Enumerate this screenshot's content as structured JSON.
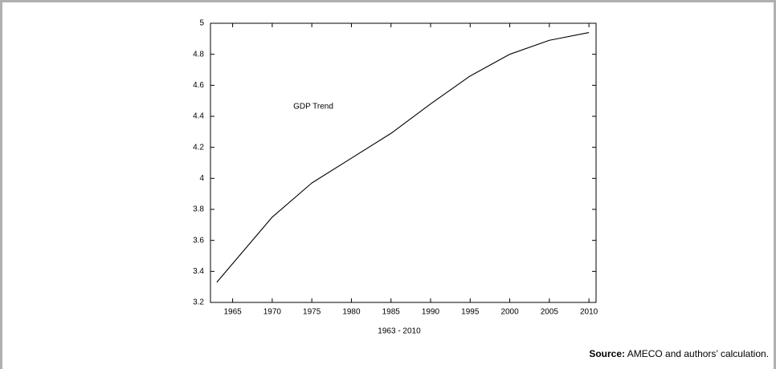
{
  "chart_data": {
    "type": "line",
    "annotation": "GDP Trend",
    "xlabel": "1963 - 2010",
    "x": [
      1963,
      1965,
      1970,
      1975,
      1980,
      1985,
      1990,
      1995,
      2000,
      2005,
      2010
    ],
    "series": [
      {
        "color": "#000000",
        "values": [
          3.33,
          3.45,
          3.75,
          3.97,
          4.13,
          4.29,
          4.48,
          4.66,
          4.8,
          4.89,
          4.94
        ]
      }
    ],
    "xlim": [
      1962.2,
      2010.9
    ],
    "xticks": [
      1965,
      1970,
      1975,
      1980,
      1985,
      1990,
      1995,
      2000,
      2005,
      2010
    ],
    "ylim": [
      3.2,
      5
    ],
    "yticks": [
      3.2,
      3.4,
      3.6,
      3.8,
      4,
      4.2,
      4.4,
      4.6,
      4.8,
      5
    ],
    "grid": false
  },
  "source": {
    "label": "Source:",
    "text": "AMECO and authors’ calculation."
  }
}
